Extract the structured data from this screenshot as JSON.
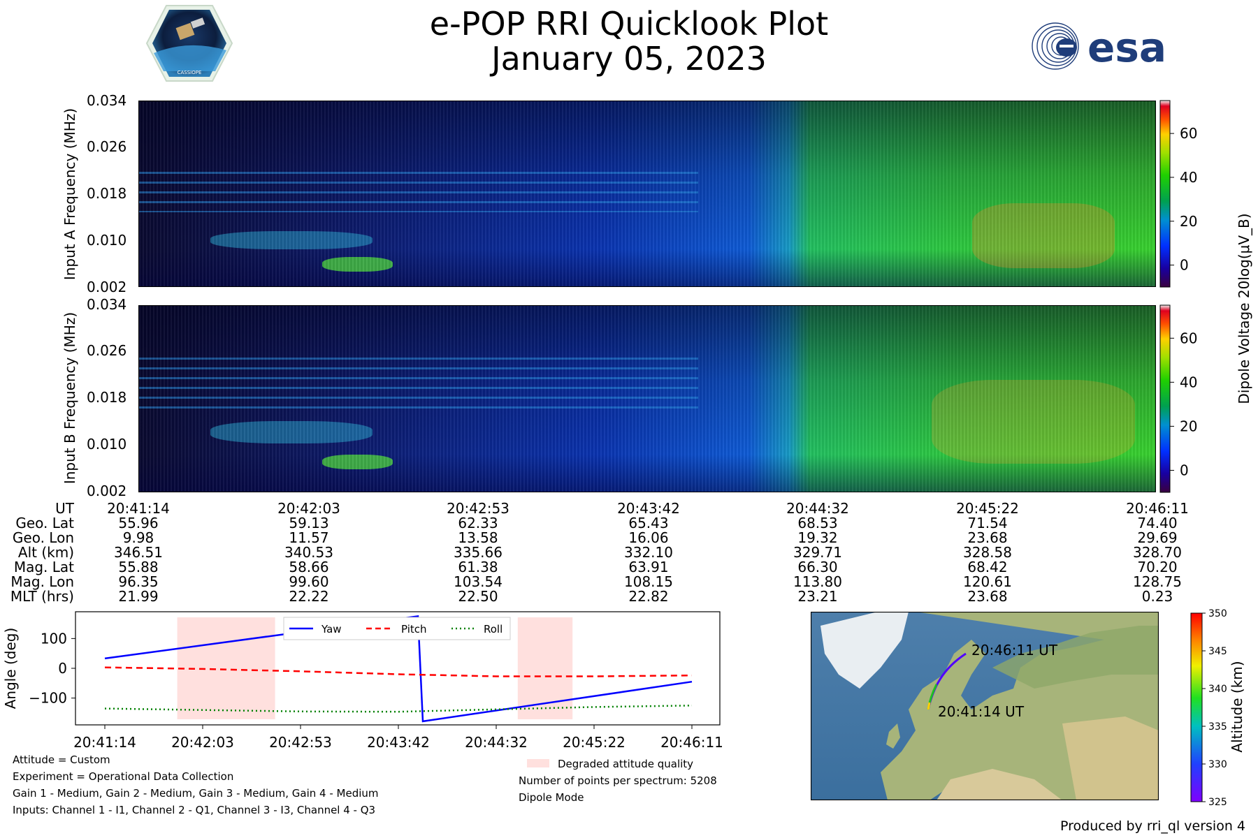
{
  "header": {
    "title": "e-POP RRI Quicklook Plot",
    "date": "January 05, 2023",
    "logo_left_text": "CASSIOPE",
    "logo_right_text": "esa"
  },
  "chart_data": [
    {
      "type": "heatmap",
      "name": "Input A spectrogram",
      "ylabel": "Input A Frequency (MHz)",
      "yticks": [
        "0.034",
        "0.026",
        "0.018",
        "0.010",
        "0.002"
      ],
      "ylim": [
        0.002,
        0.034
      ],
      "colorbar": {
        "label": "Dipole Voltage 20log(μV_B)",
        "ticks": [
          "60",
          "40",
          "20",
          "0"
        ],
        "range": [
          -10,
          75
        ]
      }
    },
    {
      "type": "heatmap",
      "name": "Input B spectrogram",
      "ylabel": "Input B Frequency (MHz)",
      "yticks": [
        "0.034",
        "0.026",
        "0.018",
        "0.010",
        "0.002"
      ],
      "ylim": [
        0.002,
        0.034
      ],
      "colorbar": {
        "label": "Dipole Voltage 20log(μV_B)",
        "ticks": [
          "60",
          "40",
          "20",
          "0"
        ],
        "range": [
          -10,
          75
        ]
      }
    },
    {
      "type": "line",
      "name": "Attitude",
      "ylabel": "Angle (deg)",
      "yticks": [
        "100",
        "0",
        "−100"
      ],
      "ylim": [
        -190,
        190
      ],
      "categories": [
        "20:41:14",
        "20:42:03",
        "20:42:53",
        "20:43:42",
        "20:44:32",
        "20:45:22",
        "20:46:11"
      ],
      "series": [
        {
          "name": "Yaw",
          "color": "#0000ff",
          "style": "solid",
          "points": [
            [
              0,
              33
            ],
            [
              3.2,
              175
            ],
            [
              3.25,
              -178
            ],
            [
              6.0,
              -45
            ]
          ]
        },
        {
          "name": "Pitch",
          "color": "#ff0000",
          "style": "dashed",
          "points": [
            [
              0,
              3
            ],
            [
              1,
              -2
            ],
            [
              2,
              -10
            ],
            [
              3,
              -20
            ],
            [
              4,
              -27
            ],
            [
              5,
              -27
            ],
            [
              6,
              -24
            ]
          ]
        },
        {
          "name": "Roll",
          "color": "#008000",
          "style": "dotted",
          "points": [
            [
              0,
              -135
            ],
            [
              1,
              -140
            ],
            [
              2,
              -145
            ],
            [
              3,
              -146
            ],
            [
              4,
              -138
            ],
            [
              5,
              -130
            ],
            [
              6,
              -125
            ]
          ]
        }
      ],
      "degraded_ranges": [
        [
          0.74,
          1.74
        ],
        [
          4.22,
          4.78
        ]
      ],
      "legend": [
        "Yaw",
        "Pitch",
        "Roll"
      ]
    },
    {
      "type": "scatter",
      "name": "Orbit track map",
      "labels": [
        "20:46:11 UT",
        "20:41:14 UT"
      ],
      "colorbar": {
        "label": "Altitude (km)",
        "ticks": [
          "350",
          "345",
          "340",
          "335",
          "330",
          "325"
        ],
        "range": [
          325,
          350
        ]
      }
    }
  ],
  "ephemeris": {
    "row_labels": [
      "UT",
      "Geo. Lat",
      "Geo. Lon",
      "Alt (km)",
      "Mag. Lat",
      "Mag. Lon",
      "MLT (hrs)"
    ],
    "columns": [
      [
        "20:41:14",
        "55.96",
        "9.98",
        "346.51",
        "55.88",
        "96.35",
        "21.99"
      ],
      [
        "20:42:03",
        "59.13",
        "11.57",
        "340.53",
        "58.66",
        "99.60",
        "22.22"
      ],
      [
        "20:42:53",
        "62.33",
        "13.58",
        "335.66",
        "61.38",
        "103.54",
        "22.50"
      ],
      [
        "20:43:42",
        "65.43",
        "16.06",
        "332.10",
        "63.91",
        "108.15",
        "22.82"
      ],
      [
        "20:44:32",
        "68.53",
        "19.32",
        "329.71",
        "66.30",
        "113.80",
        "23.21"
      ],
      [
        "20:45:22",
        "71.54",
        "23.68",
        "328.58",
        "68.42",
        "120.61",
        "23.68"
      ],
      [
        "20:46:11",
        "74.40",
        "29.69",
        "328.70",
        "70.20",
        "128.75",
        "0.23"
      ]
    ]
  },
  "notes_left": [
    "Attitude = Custom",
    "Experiment = Operational Data Collection",
    "Gain 1 - Medium, Gain 2 - Medium, Gain 3 - Medium, Gain 4 - Medium",
    "Inputs: Channel 1 - I1, Channel 2 - Q1, Channel 3 - I3, Channel 4 - Q3"
  ],
  "notes_right": {
    "legend": "Degraded attitude quality",
    "points": "Number of points per spectrum: 5208",
    "mode": "Dipole Mode"
  },
  "footer": "Produced by rri_ql version 4",
  "colors": {
    "degraded": "#ffe0de",
    "yaw": "#0000ff",
    "pitch": "#ff0000",
    "roll": "#008000"
  }
}
